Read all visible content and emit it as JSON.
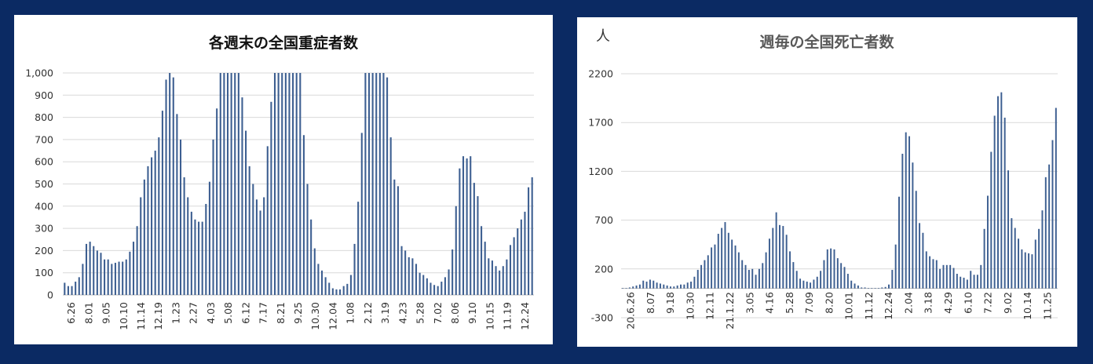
{
  "colors": {
    "frame": "#0b2a63",
    "bar": "#3d5f91",
    "grid": "#d9d9d9"
  },
  "chart_data": [
    {
      "type": "bar",
      "title": "各週末の全国重症者数",
      "ylabel": "",
      "ylim": [
        0,
        1000
      ],
      "yticks": [
        "0",
        "100",
        "200",
        "300",
        "400",
        "500",
        "600",
        "700",
        "800",
        "900",
        "1,000"
      ],
      "xlabels": [
        "6.26",
        "8.01",
        "9.05",
        "10.10",
        "11.14",
        "12.19",
        "1.23",
        "2.27",
        "4.03",
        "5.08",
        "6.12",
        "7.17",
        "8.21",
        "9.25",
        "10.30",
        "12.04",
        "1.08",
        "2.12",
        "3.19",
        "4.23",
        "5.28",
        "7.02",
        "8.06",
        "9.10",
        "10.15",
        "11.19",
        "12.24"
      ],
      "values": [
        55,
        40,
        40,
        60,
        80,
        140,
        230,
        240,
        220,
        200,
        190,
        160,
        160,
        140,
        145,
        150,
        150,
        160,
        195,
        240,
        310,
        440,
        520,
        580,
        620,
        650,
        710,
        830,
        970,
        1000,
        980,
        815,
        700,
        530,
        440,
        375,
        340,
        330,
        330,
        410,
        510,
        700,
        840,
        1000,
        1000,
        1000,
        1000,
        1000,
        1000,
        890,
        740,
        580,
        500,
        430,
        380,
        440,
        670,
        870,
        1000,
        1000,
        1000,
        1000,
        1000,
        1000,
        1000,
        1000,
        720,
        500,
        340,
        210,
        140,
        110,
        80,
        55,
        30,
        25,
        25,
        40,
        50,
        90,
        230,
        420,
        730,
        1000,
        1000,
        1000,
        1000,
        1000,
        1000,
        980,
        710,
        520,
        490,
        220,
        200,
        170,
        165,
        140,
        100,
        90,
        75,
        55,
        45,
        40,
        60,
        80,
        115,
        205,
        400,
        570,
        625,
        615,
        625,
        505,
        445,
        310,
        240,
        165,
        155,
        130,
        110,
        130,
        160,
        225,
        260,
        300,
        340,
        375,
        485,
        530
      ]
    },
    {
      "type": "bar",
      "title": "週毎の全国死亡者数",
      "ylabel": "人",
      "ylim": [
        -300,
        2200
      ],
      "yticks": [
        "-300",
        "200",
        "700",
        "1200",
        "1700",
        "2200"
      ],
      "xlabels": [
        "20.6.26",
        "8.07",
        "9.18",
        "10.30",
        "12.11",
        "21.1.22",
        "3.05",
        "4.16",
        "5.28",
        "7.09",
        "8.20",
        "10.01",
        "11.12",
        "12.24",
        "2.04",
        "3.18",
        "4.29",
        "6.10",
        "7.22",
        "9.02",
        "10.14",
        "11.25"
      ],
      "values": [
        5,
        5,
        10,
        20,
        30,
        40,
        80,
        70,
        90,
        80,
        60,
        50,
        40,
        30,
        20,
        20,
        30,
        40,
        40,
        60,
        70,
        120,
        190,
        240,
        290,
        340,
        420,
        450,
        560,
        620,
        680,
        570,
        500,
        440,
        370,
        290,
        240,
        190,
        200,
        140,
        200,
        260,
        370,
        510,
        620,
        780,
        650,
        640,
        550,
        380,
        270,
        180,
        100,
        80,
        70,
        60,
        90,
        120,
        180,
        290,
        400,
        410,
        400,
        310,
        260,
        220,
        150,
        80,
        50,
        30,
        10,
        10,
        5,
        5,
        5,
        5,
        10,
        15,
        40,
        190,
        450,
        940,
        1380,
        1600,
        1560,
        1290,
        1000,
        670,
        570,
        380,
        330,
        300,
        290,
        200,
        240,
        240,
        240,
        210,
        150,
        120,
        110,
        90,
        180,
        140,
        140,
        240,
        610,
        950,
        1400,
        1770,
        1970,
        2010,
        1750,
        1210,
        720,
        620,
        510,
        400,
        370,
        360,
        350,
        500,
        610,
        800,
        1140,
        1270,
        1520,
        1850
      ]
    }
  ]
}
